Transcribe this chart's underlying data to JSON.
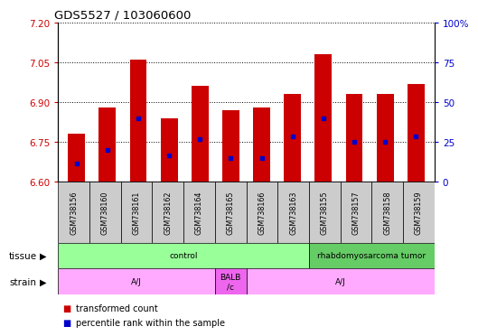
{
  "title": "GDS5527 / 103060600",
  "samples": [
    "GSM738156",
    "GSM738160",
    "GSM738161",
    "GSM738162",
    "GSM738164",
    "GSM738165",
    "GSM738166",
    "GSM738163",
    "GSM738155",
    "GSM738157",
    "GSM738158",
    "GSM738159"
  ],
  "bar_tops": [
    6.78,
    6.88,
    7.06,
    6.84,
    6.96,
    6.87,
    6.88,
    6.93,
    7.08,
    6.93,
    6.93,
    6.97
  ],
  "percentile_values": [
    6.67,
    6.72,
    6.84,
    6.7,
    6.76,
    6.69,
    6.69,
    6.77,
    6.84,
    6.75,
    6.75,
    6.77
  ],
  "bar_bottom": 6.6,
  "ylim_left": [
    6.6,
    7.2
  ],
  "yticks_left": [
    6.6,
    6.75,
    6.9,
    7.05,
    7.2
  ],
  "yticks_right": [
    0,
    25,
    50,
    75,
    100
  ],
  "bar_color": "#cc0000",
  "percentile_color": "#0000cc",
  "tissue_groups": [
    {
      "label": "control",
      "start": 0,
      "end": 8,
      "color": "#99ff99"
    },
    {
      "label": "rhabdomyosarcoma tumor",
      "start": 8,
      "end": 12,
      "color": "#66cc66"
    }
  ],
  "strain_groups": [
    {
      "label": "A/J",
      "start": 0,
      "end": 5,
      "color": "#ffaaff"
    },
    {
      "label": "BALB\n/c",
      "start": 5,
      "end": 6,
      "color": "#ee66ee"
    },
    {
      "label": "A/J",
      "start": 6,
      "end": 12,
      "color": "#ffaaff"
    }
  ],
  "legend_red_label": "transformed count",
  "legend_blue_label": "percentile rank within the sample",
  "tick_label_color_left": "#cc0000",
  "tick_label_color_right": "#0000cc",
  "xtick_bg": "#cccccc"
}
